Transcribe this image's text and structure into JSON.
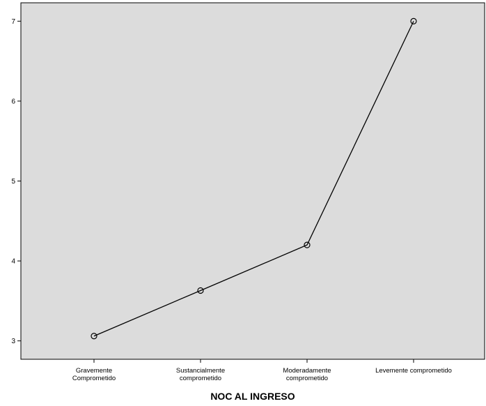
{
  "chart_data": {
    "type": "line",
    "title": "",
    "xlabel": "NOC AL INGRESO",
    "ylabel": "",
    "categories": [
      [
        "Gravemente",
        "Comprometido"
      ],
      [
        "Sustancialmente",
        "comprometido"
      ],
      [
        "Moderadamente",
        "comprometido"
      ],
      [
        "Levemente comprometido"
      ]
    ],
    "series": [
      {
        "values": [
          3.06,
          3.63,
          4.2,
          7.0
        ]
      }
    ],
    "ylim": [
      2.77,
      7.23
    ],
    "yticks": [
      3,
      4,
      5,
      6,
      7
    ],
    "grid": false,
    "legend": "none",
    "marker": "open-circle",
    "colors": {
      "plot_background": "#dcdcdc",
      "line": "#000000",
      "axis": "#000000"
    }
  }
}
